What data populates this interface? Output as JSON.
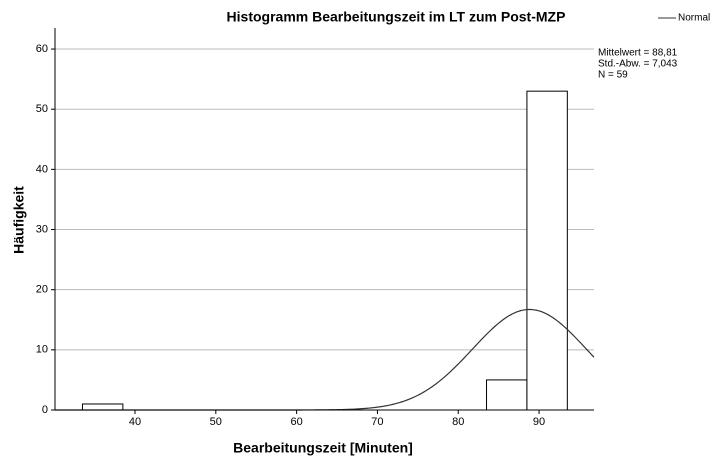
{
  "chart_data": {
    "type": "histogram",
    "title": "Histogramm Bearbeitungszeit im LT zum Post-MZP",
    "x_label": "Bearbeitungszeit [Minuten]",
    "y_label": "Häufigkeit",
    "bins": [
      33.5,
      38.5,
      43.5,
      48.5,
      53.5,
      58.5,
      63.5,
      68.5,
      73.5,
      78.5,
      83.5,
      88.5,
      93.5
    ],
    "counts": [
      1,
      0,
      0,
      0,
      0,
      0,
      0,
      0,
      0,
      0,
      5,
      53
    ],
    "color": "#ffffff",
    "xlim": [
      30.1,
      96.8
    ],
    "ylim": [
      0,
      63.5
    ],
    "xticks": [
      40,
      50,
      60,
      70,
      80,
      90
    ],
    "yticks": [
      0,
      10,
      20,
      30,
      40,
      50,
      60
    ],
    "grid": true,
    "legend": {
      "name": "Normal",
      "position": "top-right"
    },
    "stats": {
      "mean": {
        "value": 88.81,
        "label": "Mittelwert = 88,81"
      },
      "sd": {
        "value": 7.043,
        "label": "Std.-Abw. = 7,043"
      },
      "n": {
        "value": 59,
        "label": "N = 59"
      }
    }
  }
}
